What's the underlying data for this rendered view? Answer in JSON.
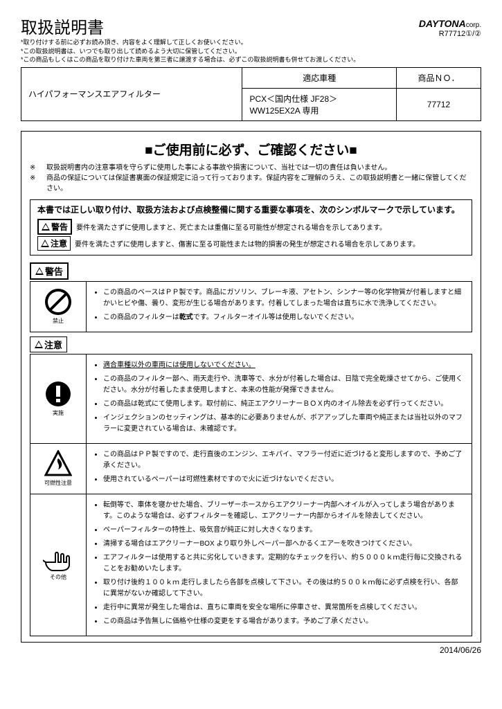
{
  "title": "取扱説明書",
  "brand": "DAYTONA",
  "brand_suffix": "corp.",
  "doc_number": "R77712①/②",
  "preamble": [
    "取り付けする前に必ずお読み頂き、内容をよく理解して正しくお使いください。",
    "この取扱説明書は、いつでも取り出して読めるよう大切に保管してください。",
    "この商品もしくはこの商品を取り付けた車両を第三者に譲渡する場合は、必ずこの取扱説明書も併せてお渡しください。"
  ],
  "spec": {
    "product_name": "ハイパフォーマンスエアフィルター",
    "col_model": "適応車種",
    "col_num": "商品ＮＯ．",
    "model": "PCX＜国内仕様 JF28＞\nWW125EX2A 専用",
    "product_number": "77712"
  },
  "big_head": "■ご使用前に必ず、ご確認ください■",
  "notices": [
    "取扱説明書内の注意事項を守らずに使用した事による事故や損害について、当社では一切の責任は負いません。",
    "商品の保証については保証書裏面の保証規定に沿って行っております。保証内容をご理解のうえ、この取扱説明書と一緒に保管してください。"
  ],
  "symbol_lead": "本書では正しい取り付け、取扱方法および点検整備に関する重要な事項を、次のシンボルマークで示しています。",
  "sym_warning": "警告",
  "sym_warning_desc": "要件を満たさずに使用しますと、死亡または重傷に至る可能性が想定される場合を示してあります。",
  "sym_caution": "注意",
  "sym_caution_desc": "要件を満たさずに使用しますと、傷害に至る可能性または物的損害の発生が想定される場合を示してあります。",
  "sec_warning": "警告",
  "sec_caution": "注意",
  "warning_icon_label": "禁止",
  "warning_items": [
    "この商品のベースはＰＰ製です。商品にガソリン、ブレーキ液、アセトン、シンナー等の化学物質が付着しますと細かいヒビや傷、曇り、変形が生じる場合があります。付着してしまった場合は直ちに水で洗浄してください。",
    "この商品のフィルターは<b>乾式</b>です。フィルターオイル等は使用しないでください。"
  ],
  "caution_blocks": [
    {
      "icon": "exclaim",
      "label": "実施",
      "items": [
        "<span class=\"underline\">適合車種以外の車両には使用しないでください。</span>",
        "この商品のフィルター部へ、雨天走行や、洗車等で、水分が付着した場合は、日陰で完全乾燥させてから、ご使用ください。水分が付着したまま使用しますと、本来の性能が発揮できません。",
        "この商品は乾式にて使用します。取付前に、純正エアクリーナーＢＯＸ内のオイル除去を必ず行ってください。",
        "インジェクションのセッティングは、基本的に必要ありませんが、ボアアップした車両や純正または当社以外のマフラーに変更されている場合は、未確認です。"
      ]
    },
    {
      "icon": "fire",
      "label": "可燃性注意",
      "items": [
        "この商品はＰＰ製ですので、走行直後のエンジン、エキパイ、マフラー付近に近づけると変形しますので、予めご了承ください。",
        "使用されているペーパーは可燃性素材ですので火に近づけないでください。"
      ]
    },
    {
      "icon": "hand",
      "label": "その他",
      "items": [
        "転倒等で、車体を寝かせた場合、ブリーザーホースからエアクリーナー内部へオイルが入ってしまう場合があります。このような場合は、必ずフィルターを確認し、エアクリーナー内部からオイルを除去してください。",
        "ペーパーフィルターの特性上、吸気音が純正に対し大きくなります。",
        "清掃する場合はエアクリーナーBOX より取り外しペーパー部へかるくエアーを吹きつけてください。",
        "エアフィルターは使用すると共に劣化していきます。定期的なチェックを行い、約５０００ｋｍ走行毎に交換されることをお勧めいたします。",
        "取り付け後約１００ｋｍ 走行しましたら各部を点検して下さい。その後は約５００ｋｍ毎に必ず点検を行い、各部に異常がないか確認して下さい。",
        "走行中に異常が発生した場合は、直ちに車両を安全な場所に停車させ、異常箇所を点検してください。",
        "この商品は予告無しに価格や仕様の変更をする場合があります。予めご了承ください。"
      ]
    }
  ],
  "footer_date": "2014/06/26"
}
